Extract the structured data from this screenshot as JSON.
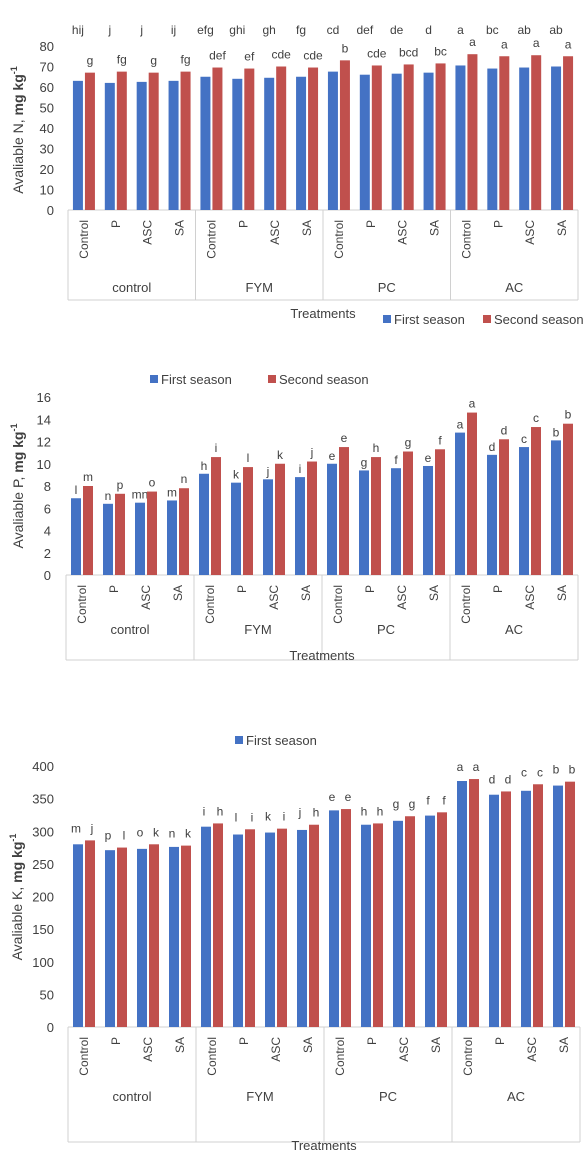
{
  "chart_data": [
    {
      "type": "bar",
      "ylabel_main": "Avaliable  N,",
      "ylabel_unit": "mg kg",
      "ylabel_sup": "-1",
      "xlabel": "Treatments",
      "ylim": [
        0,
        80
      ],
      "yticks": [
        0,
        10,
        20,
        30,
        40,
        50,
        60,
        70,
        80
      ],
      "legend_position": "bottom-right",
      "groups": [
        "control",
        "FYM",
        "PC",
        "AC"
      ],
      "categories": [
        "Control",
        "P",
        "ASC",
        "SA",
        "Control",
        "P",
        "ASC",
        "SA",
        "Control",
        "P",
        "ASC",
        "SA",
        "Control",
        "P",
        "ASC",
        "SA"
      ],
      "series": [
        {
          "name": "First season",
          "color": "#4472c4",
          "values": [
            63,
            62,
            62.5,
            63,
            65,
            64,
            64.5,
            65,
            67.5,
            66,
            66.5,
            67,
            70.5,
            69,
            69.5,
            70
          ],
          "labels": [
            "hij",
            "j",
            "j",
            "ij",
            "efg",
            "ghi",
            "gh",
            "fg",
            "cd",
            "def",
            "de",
            "d",
            "a",
            "bc",
            "ab",
            "ab"
          ]
        },
        {
          "name": "Second season",
          "color": "#c0504d",
          "values": [
            67,
            67.5,
            67,
            67.5,
            69.5,
            69,
            70,
            69.5,
            73,
            70.5,
            71,
            71.5,
            76,
            75,
            75.5,
            75
          ],
          "labels": [
            "g",
            "fg",
            "g",
            "fg",
            "def",
            "ef",
            "cde",
            "cde",
            "b",
            "cde",
            "bcd",
            "bc",
            "a",
            "a",
            "a",
            "a"
          ]
        }
      ]
    },
    {
      "type": "bar",
      "ylabel_main": "Avaliable  P,",
      "ylabel_unit": "mg kg",
      "ylabel_sup": "-1",
      "xlabel": "Treatments",
      "ylim": [
        0,
        16
      ],
      "yticks": [
        0,
        2,
        4,
        6,
        8,
        10,
        12,
        14,
        16
      ],
      "legend_position": "top",
      "groups": [
        "control",
        "FYM",
        "PC",
        "AC"
      ],
      "categories": [
        "Control",
        "P",
        "ASC",
        "SA",
        "Control",
        "P",
        "ASC",
        "SA",
        "Control",
        "P",
        "ASC",
        "SA",
        "Control",
        "P",
        "ASC",
        "SA"
      ],
      "series": [
        {
          "name": "First season",
          "color": "#4472c4",
          "values": [
            6.9,
            6.4,
            6.5,
            6.7,
            9.1,
            8.3,
            8.6,
            8.8,
            10.0,
            9.4,
            9.6,
            9.8,
            12.8,
            10.8,
            11.5,
            12.1
          ],
          "labels": [
            "l",
            "n",
            "mn",
            "m",
            "h",
            "k",
            "j",
            "i",
            "e",
            "g",
            "f",
            "e",
            "a",
            "d",
            "c",
            "b"
          ]
        },
        {
          "name": "Second season",
          "color": "#c0504d",
          "values": [
            8.0,
            7.3,
            7.5,
            7.8,
            10.6,
            9.7,
            10.0,
            10.2,
            11.5,
            10.6,
            11.1,
            11.3,
            14.6,
            12.2,
            13.3,
            13.6
          ],
          "labels": [
            "m",
            "p",
            "o",
            "n",
            "i",
            "l",
            "k",
            "j",
            "e",
            "h",
            "g",
            "f",
            "a",
            "d",
            "c",
            "b"
          ]
        }
      ]
    },
    {
      "type": "bar",
      "ylabel_main": "Avaliable  K,",
      "ylabel_unit": "mg kg",
      "ylabel_sup": "-1",
      "xlabel": "Treatments",
      "ylim": [
        0,
        400
      ],
      "yticks": [
        0,
        50,
        100,
        150,
        200,
        250,
        300,
        350,
        400
      ],
      "legend_position": "top",
      "groups": [
        "control",
        "FYM",
        "PC",
        "AC"
      ],
      "categories": [
        "Control",
        "P",
        "ASC",
        "SA",
        "Control",
        "P",
        "ASC",
        "SA",
        "Control",
        "P",
        "ASC",
        "SA",
        "Control",
        "P",
        "ASC",
        "SA"
      ],
      "series": [
        {
          "name": "First season",
          "color": "#4472c4",
          "values": [
            280,
            271,
            273,
            276,
            307,
            295,
            298,
            302,
            332,
            310,
            316,
            324,
            377,
            356,
            362,
            370
          ],
          "labels": [
            "m",
            "p",
            "o",
            "n",
            "i",
            "l",
            "k",
            "j",
            "e",
            "h",
            "g",
            "f",
            "a",
            "d",
            "c",
            "b"
          ]
        },
        {
          "name": "",
          "color": "#c0504d",
          "values": [
            286,
            275,
            280,
            278,
            312,
            303,
            304,
            310,
            334,
            312,
            323,
            329,
            380,
            361,
            372,
            376
          ],
          "labels": [
            "j",
            "l",
            "k",
            "k",
            "h",
            "i",
            "i",
            "h",
            "e",
            "h",
            "g",
            "f",
            "a",
            "d",
            "c",
            "b"
          ]
        }
      ]
    }
  ]
}
